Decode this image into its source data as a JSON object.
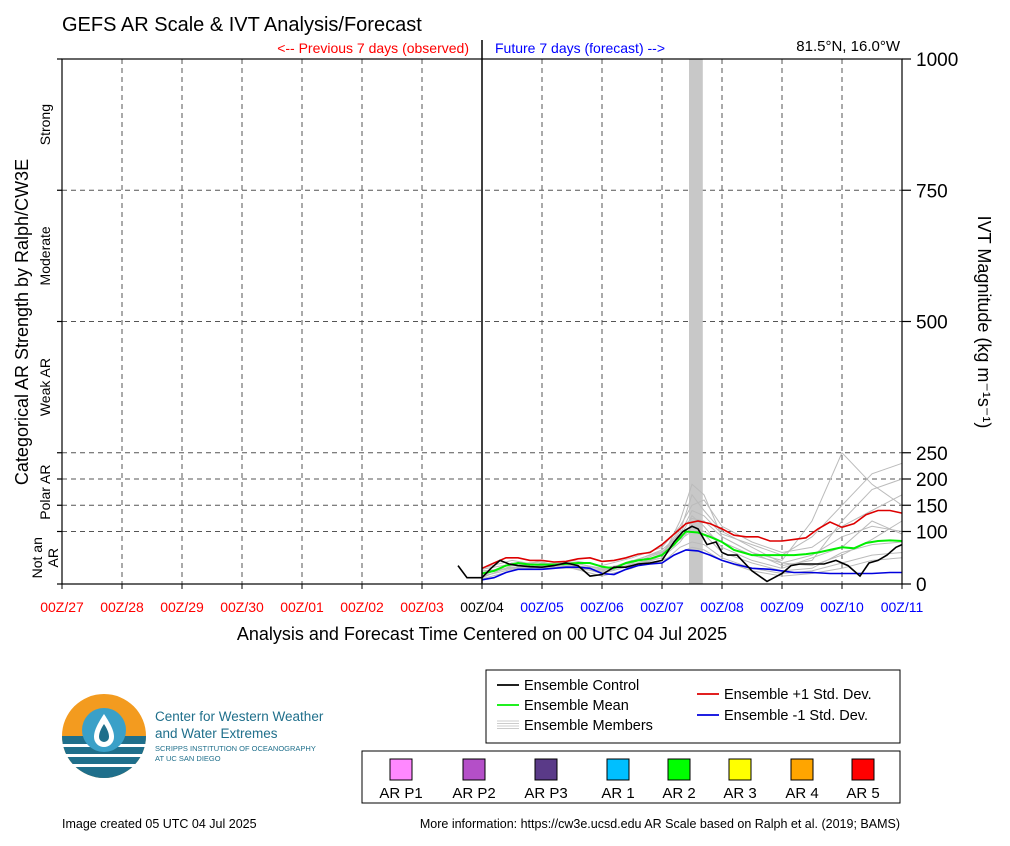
{
  "header": {
    "title": "GEFS AR Scale & IVT Analysis/Forecast",
    "previous_label": "<-- Previous 7 days (observed)",
    "future_label": "Future 7 days (forecast) -->",
    "location": "81.5°N, 16.0°W"
  },
  "colors": {
    "observed_ticks": "#ff0000",
    "forecast_ticks": "#0000ff",
    "analysis_tick": "#000000",
    "control": "#000000",
    "mean": "#00ee00",
    "plus_std": "#dd0000",
    "minus_std": "#0000dd",
    "members": "#bbbbbb",
    "grey_band": "#c8c8c8"
  },
  "chart_data": {
    "type": "line",
    "xlabel": "Analysis and Forecast Time Centered on 00 UTC 04 Jul 2025",
    "ylabel_right": "IVT Magnitude (kg m⁻¹s⁻¹)",
    "ylabel_left": "Categorical AR Strength by Ralph/CW3E",
    "xlim": [
      -7,
      7
    ],
    "ylim": [
      0,
      1000
    ],
    "x_unit": "days relative to 00Z/04",
    "x_ticks": [
      "00Z/27",
      "00Z/28",
      "00Z/29",
      "00Z/30",
      "00Z/01",
      "00Z/02",
      "00Z/03",
      "00Z/04",
      "00Z/05",
      "00Z/06",
      "00Z/07",
      "00Z/08",
      "00Z/09",
      "00Z/10",
      "00Z/11"
    ],
    "y_ticks": [
      "0",
      "100",
      "150",
      "200",
      "250",
      "500",
      "750",
      "1000"
    ],
    "y_tick_values": [
      0,
      100,
      150,
      200,
      250,
      500,
      750,
      1000
    ],
    "categories_left": [
      {
        "label": "Not an AR",
        "lines": [
          "Not an",
          "AR"
        ],
        "range": [
          0,
          100
        ]
      },
      {
        "label": "Polar AR",
        "lines": [
          "Polar AR"
        ],
        "range": [
          100,
          250
        ]
      },
      {
        "label": "Weak AR",
        "lines": [
          "Weak AR"
        ],
        "range": [
          250,
          500
        ]
      },
      {
        "label": "Moderate",
        "lines": [
          "Moderate"
        ],
        "range": [
          500,
          750
        ]
      },
      {
        "label": "Strong",
        "lines": [
          "Strong"
        ],
        "range": [
          750,
          1000
        ]
      }
    ],
    "grey_band": [
      3.45,
      3.68
    ],
    "series": [
      {
        "name": "Ensemble Control",
        "x": [
          -0.4,
          -0.25,
          0,
          0.15,
          0.3,
          0.45,
          0.6,
          0.8,
          1,
          1.2,
          1.4,
          1.6,
          1.8,
          2,
          2.2,
          2.4,
          2.6,
          2.8,
          3,
          3.2,
          3.35,
          3.5,
          3.6,
          3.75,
          3.9,
          4,
          4.1,
          4.25,
          4.5,
          4.75,
          5,
          5.15,
          5.3,
          5.5,
          5.7,
          5.9,
          6.1,
          6.3,
          6.45,
          6.6,
          6.75,
          6.9,
          7
        ],
        "y": [
          35,
          12,
          12,
          30,
          45,
          38,
          35,
          33,
          32,
          35,
          40,
          35,
          15,
          18,
          32,
          32,
          38,
          40,
          45,
          80,
          100,
          110,
          105,
          75,
          80,
          60,
          55,
          55,
          25,
          5,
          20,
          35,
          38,
          38,
          38,
          45,
          35,
          15,
          40,
          45,
          55,
          70,
          75
        ]
      },
      {
        "name": "Ensemble Mean",
        "x": [
          0,
          0.2,
          0.4,
          0.6,
          0.8,
          1,
          1.2,
          1.4,
          1.6,
          1.8,
          2,
          2.2,
          2.4,
          2.6,
          2.8,
          3,
          3.2,
          3.4,
          3.6,
          3.8,
          4,
          4.2,
          4.5,
          4.8,
          5,
          5.2,
          5.4,
          5.6,
          5.8,
          6,
          6.2,
          6.4,
          6.6,
          6.8,
          7
        ],
        "y": [
          20,
          25,
          35,
          40,
          37,
          37,
          37,
          38,
          40,
          40,
          33,
          30,
          40,
          45,
          48,
          55,
          75,
          100,
          98,
          90,
          80,
          65,
          55,
          55,
          55,
          55,
          57,
          60,
          65,
          70,
          68,
          78,
          82,
          83,
          82
        ]
      },
      {
        "name": "Ensemble +1 Std. Dev.",
        "x": [
          0,
          0.2,
          0.4,
          0.6,
          0.8,
          1,
          1.2,
          1.4,
          1.6,
          1.8,
          2,
          2.2,
          2.4,
          2.6,
          2.8,
          3,
          3.2,
          3.4,
          3.6,
          3.8,
          4,
          4.2,
          4.4,
          4.6,
          4.8,
          5,
          5.2,
          5.4,
          5.6,
          5.8,
          6,
          6.2,
          6.4,
          6.6,
          6.8,
          7
        ],
        "y": [
          30,
          40,
          50,
          50,
          45,
          45,
          42,
          43,
          48,
          50,
          43,
          45,
          50,
          57,
          60,
          75,
          95,
          115,
          120,
          115,
          105,
          93,
          90,
          90,
          82,
          82,
          85,
          88,
          105,
          118,
          108,
          115,
          132,
          140,
          140,
          135
        ]
      },
      {
        "name": "Ensemble -1 Std. Dev.",
        "x": [
          0,
          0.2,
          0.4,
          0.6,
          0.8,
          1,
          1.2,
          1.4,
          1.6,
          1.8,
          2,
          2.2,
          2.4,
          2.6,
          2.8,
          3,
          3.2,
          3.4,
          3.6,
          3.8,
          4,
          4.2,
          4.5,
          4.8,
          5,
          5.2,
          5.5,
          5.8,
          6,
          6.2,
          6.5,
          6.8,
          7
        ],
        "y": [
          8,
          12,
          22,
          28,
          28,
          28,
          30,
          32,
          32,
          30,
          20,
          18,
          28,
          35,
          38,
          40,
          55,
          65,
          63,
          55,
          45,
          38,
          30,
          28,
          25,
          22,
          22,
          20,
          20,
          20,
          20,
          22,
          22
        ]
      }
    ],
    "members_series": [
      {
        "x": [
          0,
          0.5,
          1,
          1.5,
          2,
          2.5,
          3,
          3.3,
          3.5,
          3.7,
          4,
          4.5,
          5,
          5.5,
          6,
          6.5,
          7
        ],
        "y": [
          15,
          40,
          30,
          35,
          20,
          35,
          50,
          120,
          190,
          170,
          90,
          60,
          45,
          120,
          250,
          190,
          150
        ]
      },
      {
        "x": [
          0,
          0.5,
          1,
          1.5,
          2,
          2.5,
          3,
          3.3,
          3.5,
          3.7,
          4,
          4.5,
          5,
          5.5,
          6,
          6.5,
          7
        ],
        "y": [
          25,
          30,
          35,
          40,
          30,
          40,
          60,
          90,
          130,
          110,
          70,
          45,
          30,
          50,
          70,
          120,
          95
        ]
      },
      {
        "x": [
          0,
          0.5,
          1,
          1.5,
          2,
          2.5,
          3,
          3.3,
          3.5,
          3.7,
          4,
          4.5,
          5,
          5.5,
          6,
          6.5,
          7
        ],
        "y": [
          10,
          25,
          40,
          30,
          25,
          45,
          40,
          70,
          80,
          75,
          50,
          30,
          20,
          25,
          40,
          55,
          60
        ]
      },
      {
        "x": [
          0,
          0.5,
          1,
          1.5,
          2,
          2.5,
          3,
          3.3,
          3.5,
          3.7,
          4,
          4.5,
          5,
          5.5,
          6,
          6.5,
          7
        ],
        "y": [
          30,
          45,
          35,
          45,
          35,
          50,
          70,
          110,
          150,
          160,
          110,
          80,
          60,
          70,
          110,
          140,
          170
        ]
      },
      {
        "x": [
          0,
          0.5,
          1,
          1.5,
          2,
          2.5,
          3,
          3.3,
          3.5,
          3.7,
          4,
          4.5,
          5,
          5.5,
          6,
          6.5,
          7
        ],
        "y": [
          12,
          35,
          30,
          30,
          15,
          30,
          55,
          100,
          170,
          140,
          100,
          70,
          40,
          35,
          55,
          85,
          120
        ]
      },
      {
        "x": [
          0,
          0.5,
          1,
          1.5,
          2,
          2.5,
          3,
          3.3,
          3.5,
          3.7,
          4,
          4.5,
          5,
          5.5,
          6,
          6.5,
          7
        ],
        "y": [
          20,
          30,
          45,
          35,
          30,
          35,
          45,
          60,
          70,
          65,
          45,
          25,
          15,
          20,
          30,
          45,
          50
        ]
      },
      {
        "x": [
          0,
          0.5,
          1,
          1.5,
          2,
          2.5,
          3,
          3.3,
          3.5,
          3.7,
          4,
          4.5,
          5,
          5.5,
          6,
          6.5,
          7
        ],
        "y": [
          18,
          40,
          38,
          42,
          28,
          42,
          65,
          95,
          140,
          130,
          95,
          75,
          55,
          90,
          150,
          210,
          230
        ]
      },
      {
        "x": [
          0,
          0.5,
          1,
          1.5,
          2,
          2.5,
          3,
          3.3,
          3.5,
          3.7,
          4,
          4.5,
          5,
          5.5,
          6,
          6.5,
          7
        ],
        "y": [
          22,
          32,
          28,
          38,
          22,
          38,
          50,
          80,
          110,
          100,
          80,
          55,
          40,
          55,
          90,
          110,
          100
        ]
      },
      {
        "x": [
          0,
          0.5,
          1,
          1.5,
          2,
          2.5,
          3,
          3.3,
          3.5,
          3.7,
          4,
          4.5,
          5,
          5.5,
          6,
          6.5,
          7
        ],
        "y": [
          15,
          28,
          33,
          33,
          27,
          33,
          58,
          105,
          125,
          120,
          90,
          60,
          35,
          45,
          120,
          180,
          200
        ]
      },
      {
        "x": [
          0,
          0.5,
          1,
          1.5,
          2,
          2.5,
          3,
          3.3,
          3.5,
          3.7,
          4,
          4.5,
          5,
          5.5,
          6,
          6.5,
          7
        ],
        "y": [
          28,
          38,
          42,
          30,
          24,
          44,
          62,
          85,
          100,
          95,
          60,
          40,
          25,
          30,
          60,
          75,
          80
        ]
      }
    ]
  },
  "legend": {
    "items": [
      {
        "label": "Ensemble Control",
        "color": "#000000"
      },
      {
        "label": "Ensemble Mean",
        "color": "#00ee00"
      },
      {
        "label": "Ensemble Members",
        "color": "#bbbbbb"
      },
      {
        "label": "Ensemble +1 Std. Dev.",
        "color": "#dd0000"
      },
      {
        "label": "Ensemble -1 Std. Dev.",
        "color": "#0000dd"
      }
    ]
  },
  "ar_scale": [
    {
      "label": "AR P1",
      "color": "#ff88ff"
    },
    {
      "label": "AR P2",
      "color": "#b44fc8"
    },
    {
      "label": "AR P3",
      "color": "#5a3a88"
    },
    {
      "label": "AR 1",
      "color": "#00bfff"
    },
    {
      "label": "AR 2",
      "color": "#00ff00"
    },
    {
      "label": "AR 3",
      "color": "#ffff00"
    },
    {
      "label": "AR 4",
      "color": "#ffa500"
    },
    {
      "label": "AR 5",
      "color": "#ff0000"
    }
  ],
  "logo": {
    "line1": "Center for Western Weather",
    "line2": "and Water Extremes",
    "line3": "SCRIPPS INSTITUTION OF OCEANOGRAPHY",
    "line4": "AT UC SAN DIEGO"
  },
  "footer": {
    "created": "Image created 05 UTC 04 Jul 2025",
    "more_info": "More information: https://cw3e.ucsd.edu AR Scale based on Ralph et al. (2019; BAMS)"
  }
}
